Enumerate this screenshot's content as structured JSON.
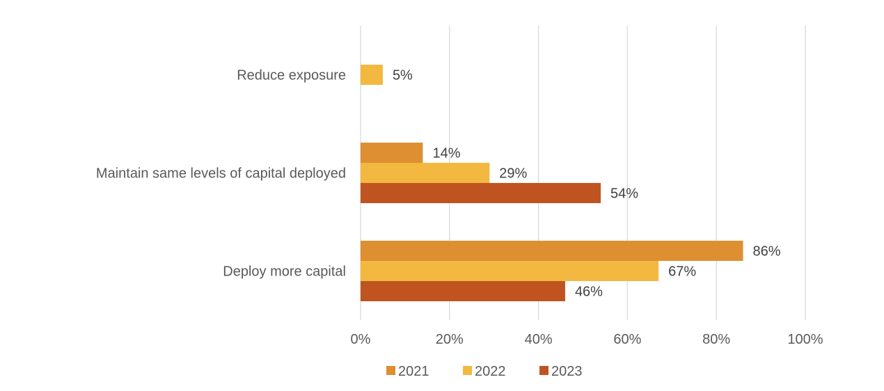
{
  "chart_data": {
    "type": "bar",
    "orientation": "horizontal",
    "title": "",
    "xlabel": "",
    "ylabel": "",
    "categories": [
      "Reduce exposure",
      "Maintain same levels of capital deployed",
      "Deploy more capital"
    ],
    "series": [
      {
        "name": "2021",
        "color": "#DE8F31",
        "values": [
          null,
          14,
          86
        ],
        "labels": [
          "",
          "14%",
          "86%"
        ]
      },
      {
        "name": "2022",
        "color": "#F3B840",
        "values": [
          5,
          29,
          67
        ],
        "labels": [
          "5%",
          "29%",
          "67%"
        ]
      },
      {
        "name": "2023",
        "color": "#C05420",
        "values": [
          null,
          54,
          46
        ],
        "labels": [
          "",
          "54%",
          "46%"
        ]
      }
    ],
    "xlim": [
      0,
      100
    ],
    "xticks": [
      0,
      20,
      40,
      60,
      80,
      100
    ],
    "xtick_labels": [
      "0%",
      "20%",
      "40%",
      "60%",
      "80%",
      "100%"
    ],
    "grid": true,
    "legend": {
      "position": "bottom",
      "entries": [
        "2021",
        "2022",
        "2023"
      ]
    }
  }
}
